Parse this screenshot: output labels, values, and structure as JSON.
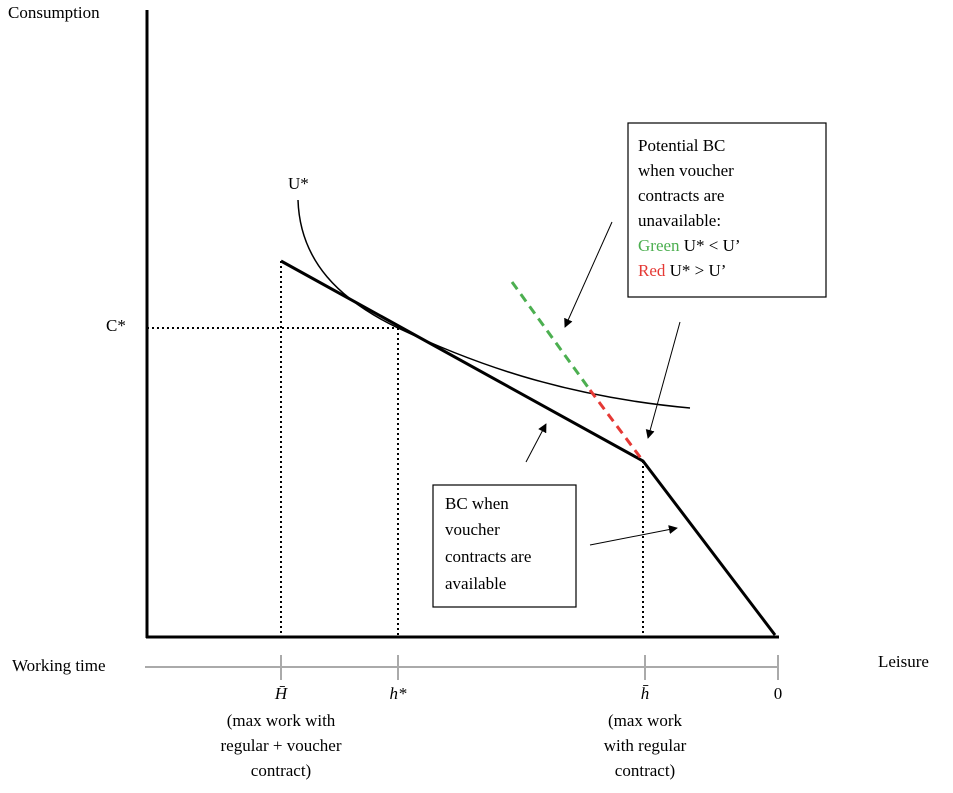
{
  "axes": {
    "y_label": "Consumption",
    "x_label": "Leisure",
    "working_time_label": "Working time"
  },
  "curve_label": "U*",
  "c_star": "C*",
  "potential_box": {
    "lines": [
      "Potential BC",
      "when voucher",
      "contracts are",
      "unavailable:"
    ],
    "green_word": "Green",
    "green_text": "U* < U’",
    "red_word": "Red",
    "red_text": "U* > U’"
  },
  "bc_box": {
    "lines": [
      "BC when",
      "voucher",
      "contracts are",
      "available"
    ]
  },
  "ticks": [
    {
      "label": "H̄",
      "note": [
        "(max work with",
        "regular + voucher",
        "contract)"
      ]
    },
    {
      "label": "h*"
    },
    {
      "label": "h̄",
      "note": [
        "(max work",
        "with regular",
        "contract)"
      ]
    },
    {
      "label": "0"
    }
  ]
}
